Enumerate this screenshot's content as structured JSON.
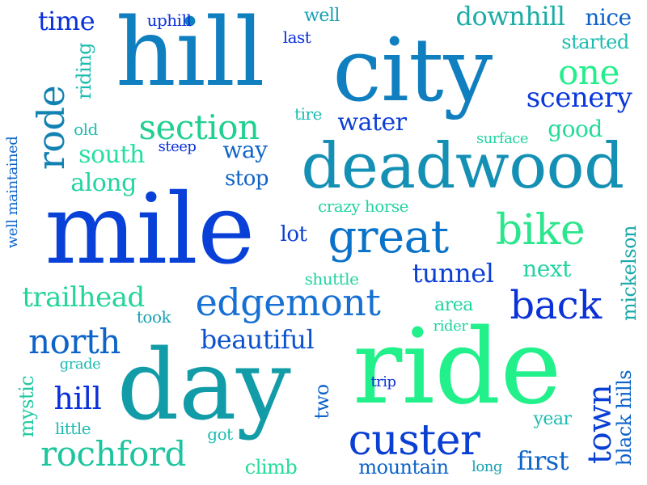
{
  "words": [
    {
      "text": "hill",
      "color": "#0f7fbf"
    },
    {
      "text": "city",
      "color": "#0f7fbf"
    },
    {
      "text": "mile",
      "color": "#0840d8"
    },
    {
      "text": "ride",
      "color": "#22f08a"
    },
    {
      "text": "day",
      "color": "#129ca8"
    },
    {
      "text": "deadwood",
      "color": "#1390b4"
    },
    {
      "text": "great",
      "color": "#0a72c8"
    },
    {
      "text": "custer",
      "color": "#0a3fd4"
    },
    {
      "text": "edgemont",
      "color": "#1670d4"
    },
    {
      "text": "rochford",
      "color": "#1dc59e"
    },
    {
      "text": "section",
      "color": "#1fd090"
    },
    {
      "text": "rode",
      "color": "#1282b2"
    },
    {
      "text": "bike",
      "color": "#2be68c"
    },
    {
      "text": "back",
      "color": "#0b31d8"
    },
    {
      "text": "north",
      "color": "#0d63c8"
    },
    {
      "text": "town",
      "color": "#0a3fd4"
    },
    {
      "text": "one",
      "color": "#24ee8c"
    },
    {
      "text": "scenery",
      "color": "#0a38dc"
    },
    {
      "text": "downhill",
      "color": "#1aaca6"
    },
    {
      "text": "time",
      "color": "#0a30dc"
    },
    {
      "text": "trailhead",
      "color": "#24d598"
    },
    {
      "text": "beautiful",
      "color": "#0c52cc"
    },
    {
      "text": "hill",
      "color": "#0a2fdc"
    },
    {
      "text": "tunnel",
      "color": "#0b3fd4"
    },
    {
      "text": "water",
      "color": "#0d3fd4"
    },
    {
      "text": "south",
      "color": "#24e0a0"
    },
    {
      "text": "along",
      "color": "#22d4a0"
    },
    {
      "text": "mountain",
      "color": "#0d63c8"
    },
    {
      "text": "first",
      "color": "#0d63c8"
    },
    {
      "text": "black hills",
      "color": "#0d63c8"
    },
    {
      "text": "mickelson",
      "color": "#1aa8a8"
    },
    {
      "text": "mystic",
      "color": "#1dcaa0"
    },
    {
      "text": "good",
      "color": "#22dc98"
    },
    {
      "text": "next",
      "color": "#22d4a0"
    },
    {
      "text": "way",
      "color": "#0d63c8"
    },
    {
      "text": "stop",
      "color": "#0d63c8"
    },
    {
      "text": "riding",
      "color": "#1dbcb0"
    },
    {
      "text": "started",
      "color": "#1dbcb0"
    },
    {
      "text": "nice",
      "color": "#0d63c8"
    },
    {
      "text": "climb",
      "color": "#22dc98"
    },
    {
      "text": "area",
      "color": "#22d4a0"
    },
    {
      "text": "lot",
      "color": "#0a3fd4"
    },
    {
      "text": "well",
      "color": "#1aa0b0"
    },
    {
      "text": "two",
      "color": "#0d63c8"
    },
    {
      "text": "year",
      "color": "#1dbcb0"
    },
    {
      "text": "uphill",
      "color": "#0a30dc"
    },
    {
      "text": "last",
      "color": "#0a30dc"
    },
    {
      "text": "old",
      "color": "#1dbcb0"
    },
    {
      "text": "steep",
      "color": "#0a30dc"
    },
    {
      "text": "crazy horse",
      "color": "#22d4a0"
    },
    {
      "text": "shuttle",
      "color": "#22d4a0"
    },
    {
      "text": "took",
      "color": "#1aa0b0"
    },
    {
      "text": "rider",
      "color": "#22d4a0"
    },
    {
      "text": "grade",
      "color": "#1dbcb0"
    },
    {
      "text": "little",
      "color": "#1dbcb0"
    },
    {
      "text": "got",
      "color": "#1dbcb0"
    },
    {
      "text": "trip",
      "color": "#0a30dc"
    },
    {
      "text": "long",
      "color": "#1aa0b0"
    },
    {
      "text": "tire",
      "color": "#1dbcb0"
    },
    {
      "text": "surface",
      "color": "#22d4a0"
    },
    {
      "text": "well maintained",
      "color": "#0d63c8"
    }
  ]
}
